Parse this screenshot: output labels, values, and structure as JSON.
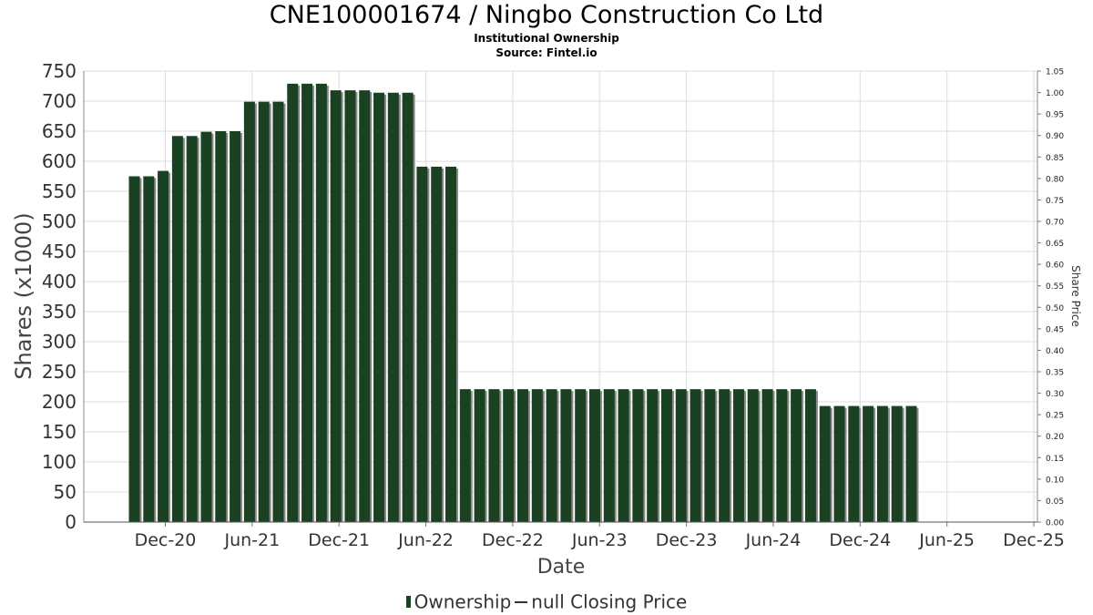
{
  "title": "CNE100001674 / Ningbo Construction Co Ltd",
  "subtitle1": "Institutional Ownership",
  "subtitle2": "Source: Fintel.io",
  "legend": {
    "ownership": "Ownership",
    "price": "null Closing Price"
  },
  "colors": {
    "bar": "#1a4222",
    "bar_shadow": "#8a8a8a",
    "grid": "#dddddd",
    "axis": "#555555"
  },
  "chart_data": {
    "type": "bar",
    "xlabel": "Date",
    "ylabel": "Shares (x1000)",
    "y2label": "Share Price",
    "ylim": [
      0,
      750
    ],
    "y2lim": [
      0,
      1.05
    ],
    "yticks": [
      0,
      50,
      100,
      150,
      200,
      250,
      300,
      350,
      400,
      450,
      500,
      550,
      600,
      650,
      700,
      750
    ],
    "y2ticks": [
      "0.00",
      "0.05",
      "0.10",
      "0.15",
      "0.20",
      "0.25",
      "0.30",
      "0.35",
      "0.40",
      "0.45",
      "0.50",
      "0.55",
      "0.60",
      "0.65",
      "0.70",
      "0.75",
      "0.80",
      "0.85",
      "0.90",
      "0.95",
      "1.00",
      "1.05"
    ],
    "xticks": [
      "Dec-20",
      "Jun-21",
      "Dec-21",
      "Jun-22",
      "Dec-22",
      "Jun-23",
      "Dec-23",
      "Jun-24",
      "Dec-24",
      "Jun-25",
      "Dec-25"
    ],
    "grid": true,
    "series": [
      {
        "name": "Ownership",
        "values": [
          575,
          575,
          584,
          642,
          642,
          649,
          650,
          650,
          699,
          699,
          699,
          729,
          729,
          729,
          718,
          718,
          718,
          714,
          714,
          714,
          591,
          591,
          591,
          221,
          221,
          221,
          221,
          221,
          221,
          221,
          221,
          221,
          221,
          221,
          221,
          221,
          221,
          221,
          221,
          221,
          221,
          221,
          221,
          221,
          221,
          221,
          221,
          221,
          193,
          193,
          193,
          193,
          193,
          193,
          193
        ]
      }
    ]
  }
}
